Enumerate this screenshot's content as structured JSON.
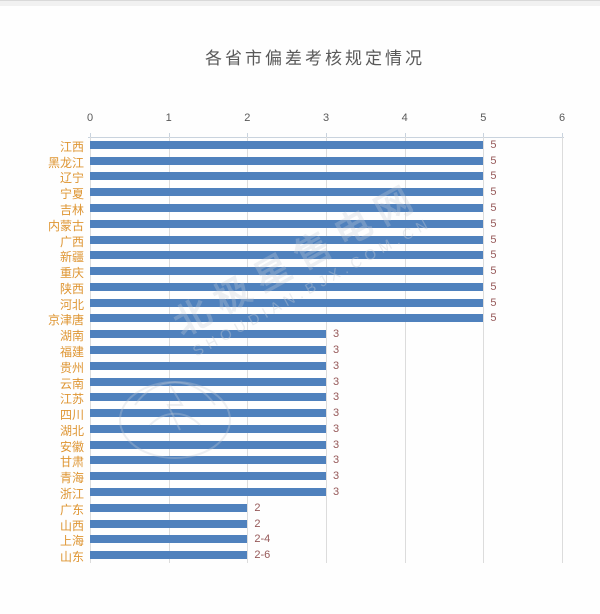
{
  "chart_data": {
    "type": "bar",
    "orientation": "horizontal",
    "title": "各省市偏差考核规定情况",
    "categories": [
      "江西",
      "黑龙江",
      "辽宁",
      "宁夏",
      "吉林",
      "内蒙古",
      "广西",
      "新疆",
      "重庆",
      "陕西",
      "河北",
      "京津唐",
      "湖南",
      "福建",
      "贵州",
      "云南",
      "江苏",
      "四川",
      "湖北",
      "安徽",
      "甘肃",
      "青海",
      "浙江",
      "广东",
      "山西",
      "上海",
      "山东"
    ],
    "values": [
      5,
      5,
      5,
      5,
      5,
      5,
      5,
      5,
      5,
      5,
      5,
      5,
      3,
      3,
      3,
      3,
      3,
      3,
      3,
      3,
      3,
      3,
      3,
      2,
      2,
      2,
      2
    ],
    "bar_labels": [
      "5",
      "5",
      "5",
      "5",
      "5",
      "5",
      "5",
      "5",
      "5",
      "5",
      "5",
      "5",
      "3",
      "3",
      "3",
      "3",
      "3",
      "3",
      "3",
      "3",
      "3",
      "3",
      "3",
      "2",
      "2",
      "2-4",
      "2-6"
    ],
    "xlabel": "",
    "ylabel": "",
    "xlim": [
      0,
      6
    ],
    "x_ticks": [
      "0",
      "1",
      "2",
      "3",
      "4",
      "5",
      "6"
    ],
    "grid": "vertical gridlines at integer ticks",
    "legend": "none",
    "colors": {
      "bar": "#4f81bd",
      "category_label": "#de9532",
      "value_label": "#965959",
      "tick_label": "#595959",
      "title": "#595959",
      "gridline": "#dcdcdc",
      "axis_line": "#bcc8d6"
    }
  },
  "watermark": {
    "text_cn": "北极星售电网",
    "text_en": "SHOUDIAN.BJX.COM.CN"
  }
}
